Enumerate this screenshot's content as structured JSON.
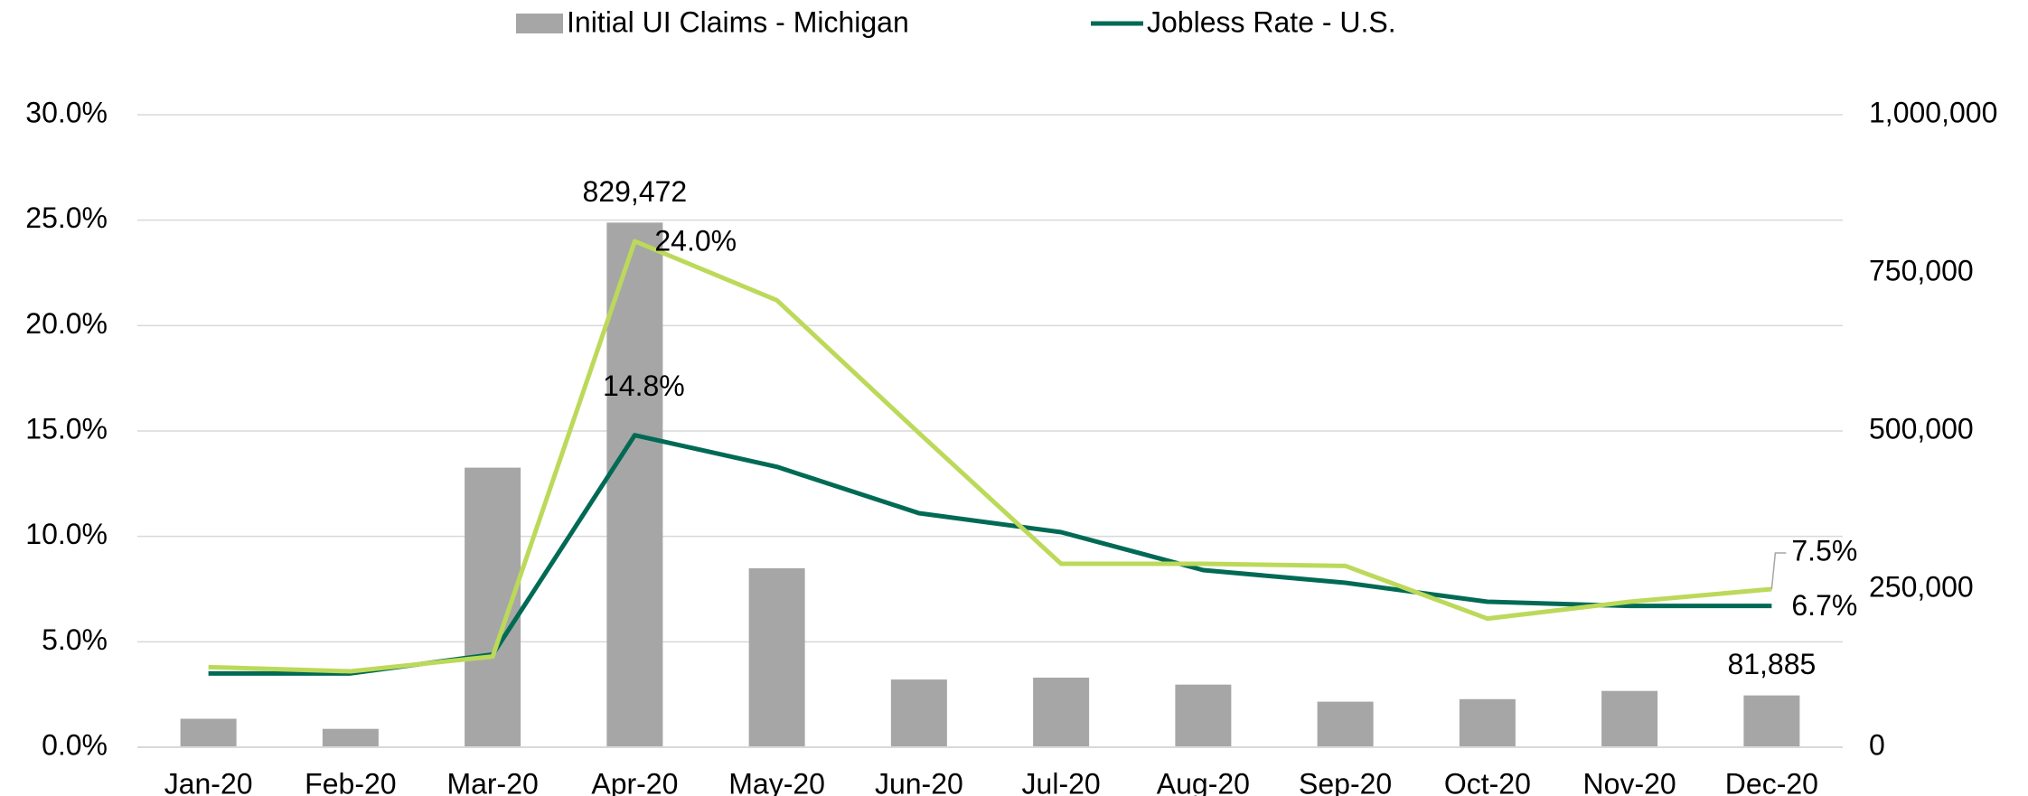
{
  "chart_data": {
    "type": "bar",
    "categories": [
      "Jan-20",
      "Feb-20",
      "Mar-20",
      "Apr-20",
      "May-20",
      "Jun-20",
      "Jul-20",
      "Aug-20",
      "Sep-20",
      "Oct-20",
      "Nov-20",
      "Dec-20"
    ],
    "series": [
      {
        "name": "Initial UI Claims - Michigan",
        "type": "bar",
        "axis": "y2",
        "color": "#a6a6a6",
        "values": [
          45000,
          29000,
          442000,
          829472,
          283000,
          107000,
          110000,
          99000,
          72000,
          76000,
          89000,
          81885
        ],
        "value_labels": [
          null,
          null,
          null,
          "829,472",
          null,
          null,
          null,
          null,
          null,
          null,
          null,
          "81,885"
        ]
      },
      {
        "name": "Jobless Rate - U.S.",
        "type": "line",
        "axis": "y",
        "color": "#006a55",
        "values": [
          3.5,
          3.5,
          4.4,
          14.8,
          13.3,
          11.1,
          10.2,
          8.4,
          7.8,
          6.9,
          6.7,
          6.7
        ],
        "value_labels": [
          null,
          null,
          null,
          "14.8%",
          null,
          null,
          null,
          null,
          null,
          null,
          null,
          "6.7%"
        ]
      },
      {
        "type": "line",
        "axis": "y",
        "color": "#bcd95a",
        "values": [
          3.8,
          3.6,
          4.3,
          24.0,
          21.2,
          14.9,
          8.7,
          8.7,
          8.6,
          6.1,
          6.9,
          7.5
        ],
        "value_labels": [
          null,
          null,
          null,
          "24.0%",
          null,
          null,
          null,
          null,
          null,
          null,
          null,
          "7.5%"
        ]
      }
    ],
    "ylim": [
      0,
      30
    ],
    "yticks": [
      {
        "value": 0,
        "label": "0.0%"
      },
      {
        "value": 5,
        "label": "5.0%"
      },
      {
        "value": 10,
        "label": "10.0%"
      },
      {
        "value": 15,
        "label": "15.0%"
      },
      {
        "value": 20,
        "label": "20.0%"
      },
      {
        "value": 25,
        "label": "25.0%"
      },
      {
        "value": 30,
        "label": "30.0%"
      }
    ],
    "y2lim": [
      0,
      1000000
    ],
    "y2ticks": [
      0,
      {
        "value": 250000,
        "label": "250,000"
      },
      {
        "value": 500000,
        "label": "500,000"
      },
      {
        "value": 750000,
        "label": "750,000"
      },
      {
        "value": 1000000,
        "label": "1,000,000"
      }
    ],
    "grid": true,
    "legend": "top"
  }
}
